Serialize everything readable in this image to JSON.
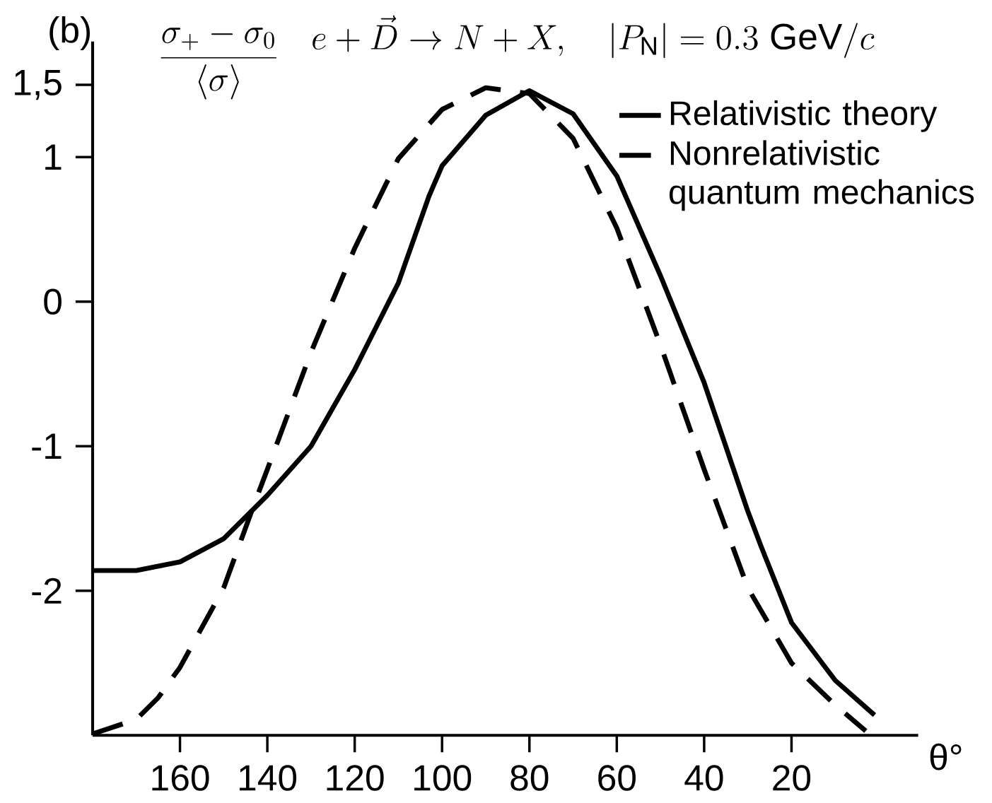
{
  "chart_data": {
    "type": "line",
    "title": "e+\\vec{D}\\rightarrow N+X,\\quad |P_{\\mathrm{N}}|=0.3\\ \\mathrm{GeV}/c",
    "ylabel": "\\frac{\\sigma_{+}-\\sigma_{0}}{\\langle\\sigma\\rangle}",
    "xlabel": "θ°",
    "annotations": [
      "(b)"
    ],
    "xlim": [
      180,
      -9
    ],
    "ylim": [
      -3,
      1.8
    ],
    "xticks": [
      {
        "value": 160,
        "label": "160"
      },
      {
        "value": 140,
        "label": "140"
      },
      {
        "value": 120,
        "label": "120"
      },
      {
        "value": 100,
        "label": "100"
      },
      {
        "value": 80,
        "label": "80"
      },
      {
        "value": 60,
        "label": "60"
      },
      {
        "value": 40,
        "label": "40"
      },
      {
        "value": 20,
        "label": "20"
      }
    ],
    "yticks": [
      -2,
      -1,
      0,
      1,
      {
        "value": 1.5,
        "label": "1,5"
      }
    ],
    "legend": "top right",
    "marker": "none",
    "series": [
      {
        "name": "Relativistic theory",
        "color": "#000000",
        "line_style": "solid",
        "x": [
          180,
          170,
          160,
          150,
          143,
          140,
          130,
          120,
          110,
          103,
          100,
          90,
          80,
          70,
          60,
          50,
          40,
          30,
          27,
          20,
          10,
          1
        ],
        "values": [
          -1.86,
          -1.86,
          -1.8,
          -1.64,
          -1.43,
          -1.34,
          -1.0,
          -0.47,
          0.13,
          0.73,
          0.94,
          1.29,
          1.46,
          1.3,
          0.87,
          0.18,
          -0.56,
          -1.45,
          -1.69,
          -2.22,
          -2.62,
          -2.86
        ]
      },
      {
        "name": "Nonrelativistic quantum mechanics",
        "color": "#000000",
        "line_style": "dashed",
        "x": [
          180,
          170,
          165,
          160,
          150,
          143,
          140,
          130,
          120,
          110,
          100,
          90,
          80,
          70,
          60,
          50,
          40,
          30,
          20,
          10,
          3
        ],
        "values": [
          -2.99,
          -2.89,
          -2.74,
          -2.53,
          -1.98,
          -1.4,
          -1.16,
          -0.35,
          0.37,
          0.99,
          1.33,
          1.48,
          1.44,
          1.13,
          0.51,
          -0.3,
          -1.16,
          -1.98,
          -2.5,
          -2.79,
          -2.97
        ]
      }
    ]
  }
}
